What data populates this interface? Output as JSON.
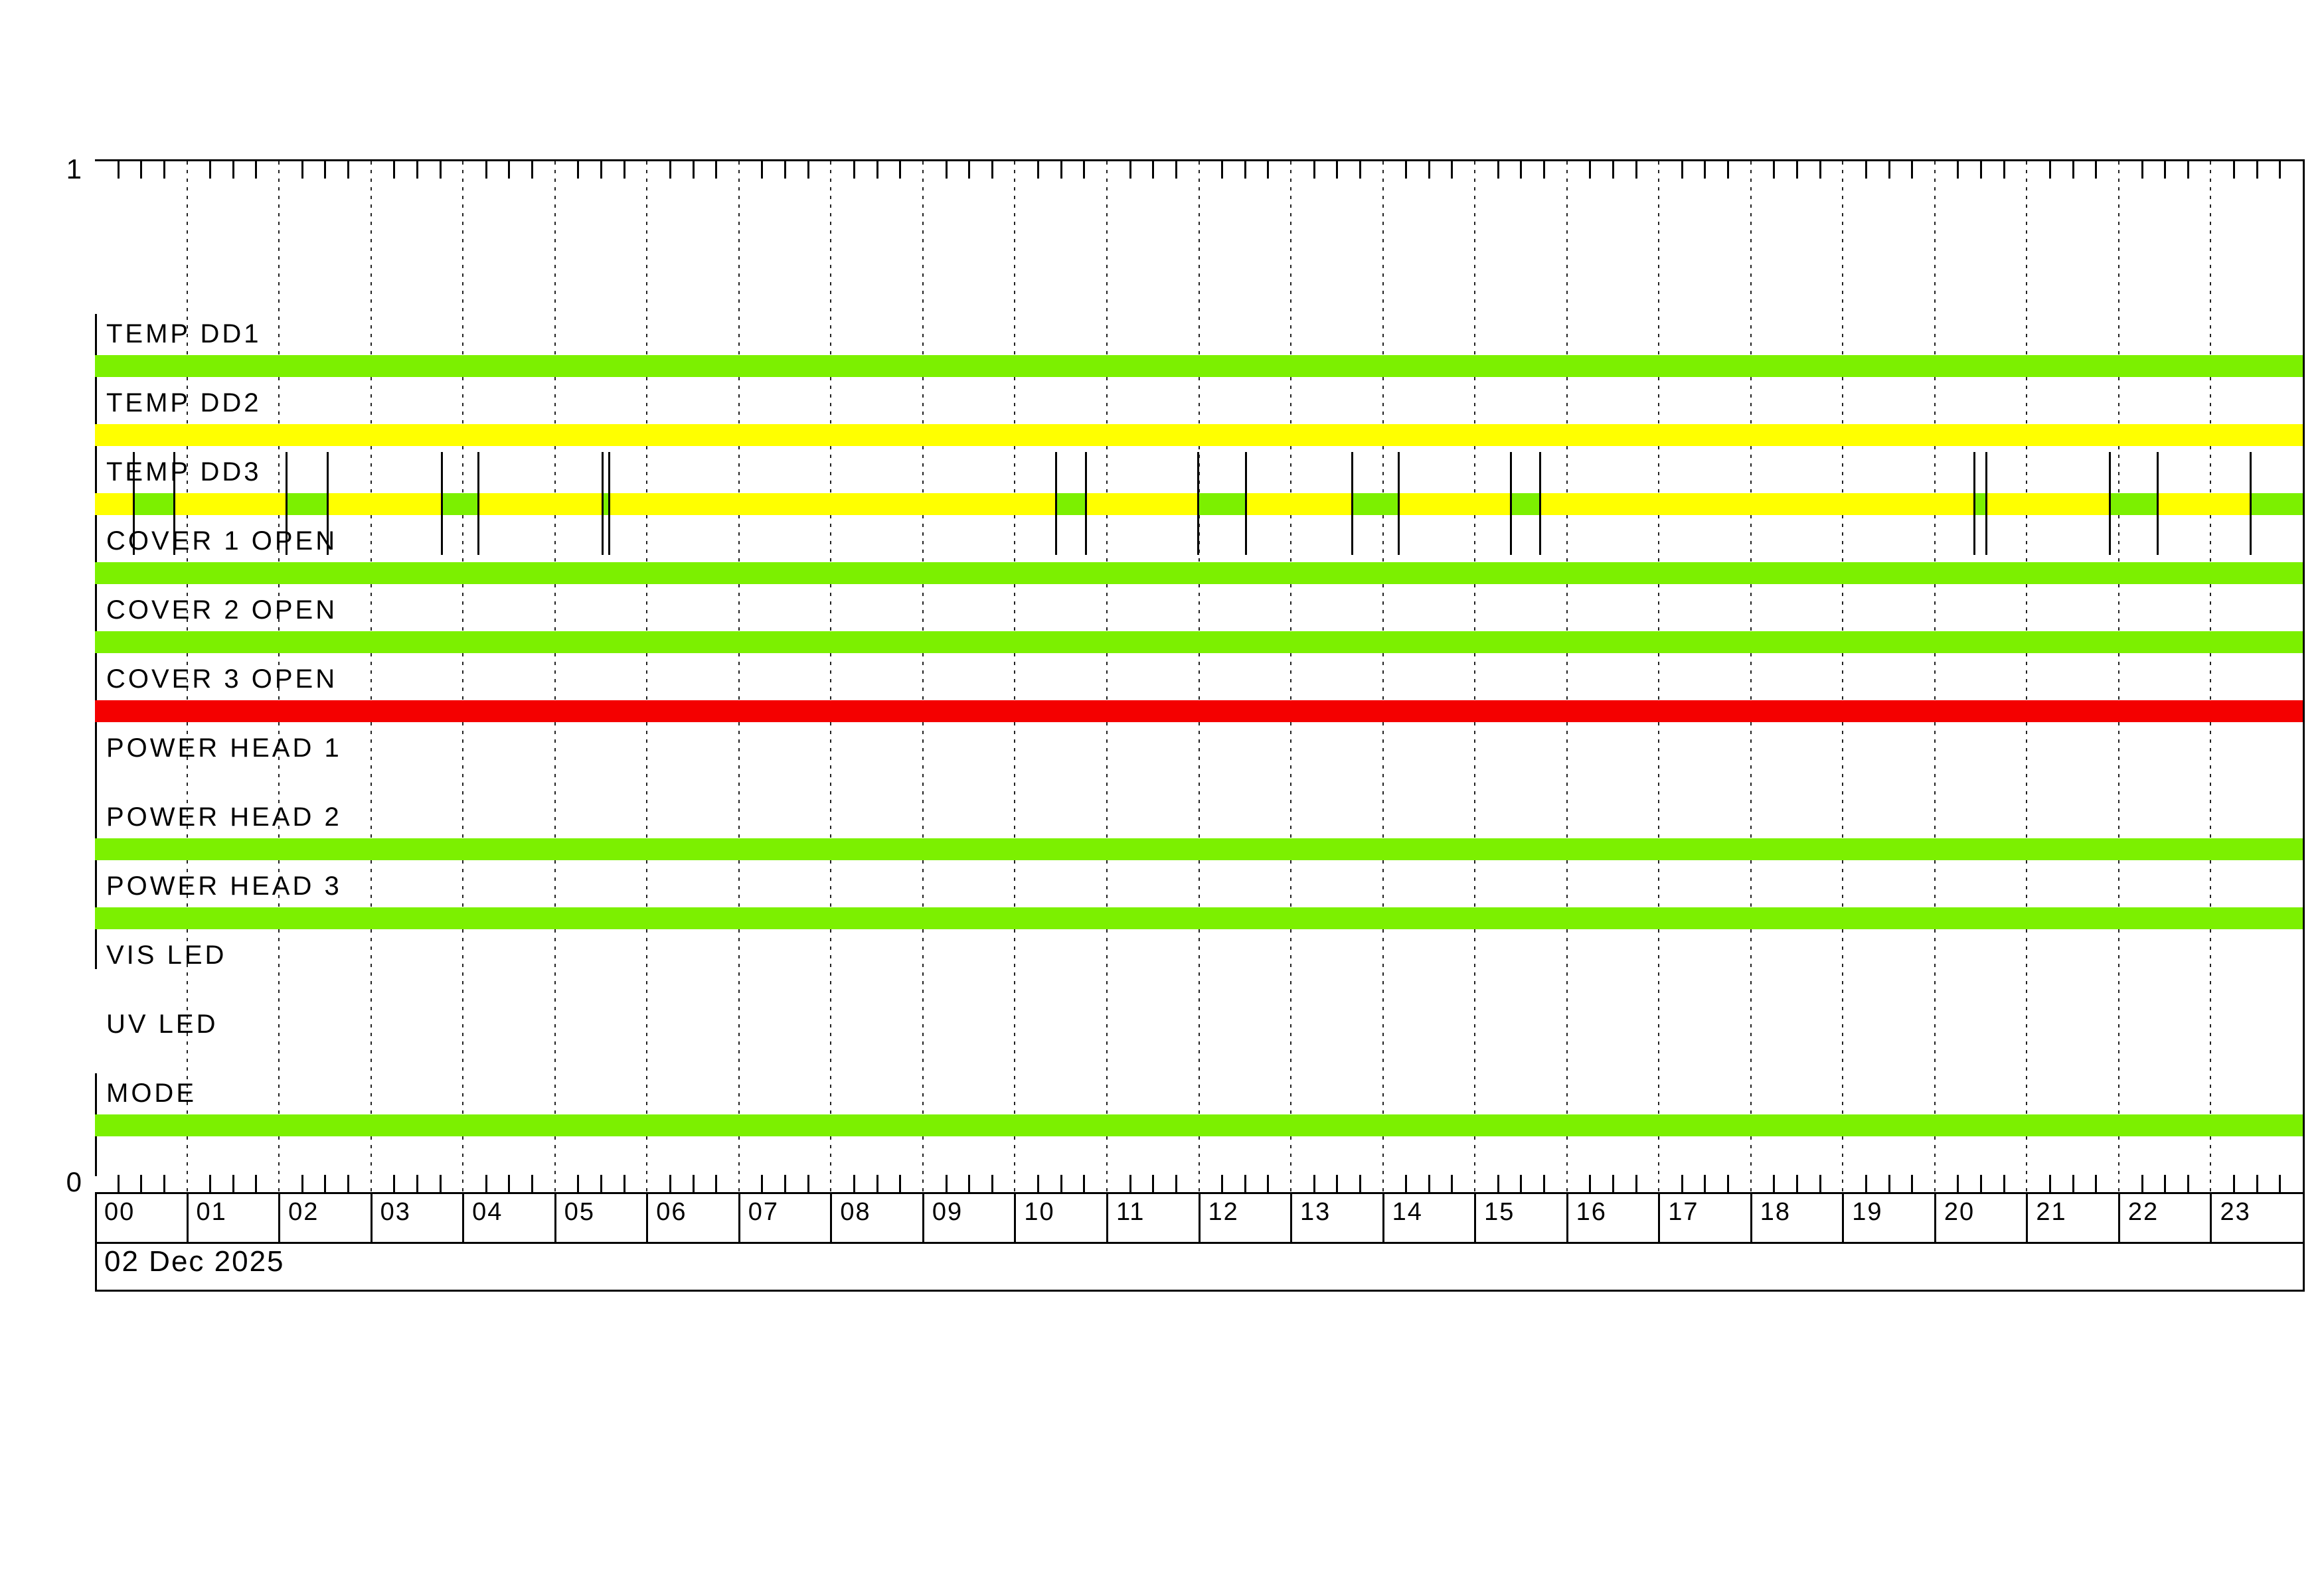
{
  "chart_data": {
    "type": "timeline-status",
    "date_label": "02 Dec 2025",
    "y_axis": {
      "top_label": "1",
      "bottom_label": "0"
    },
    "x_axis": {
      "hour_labels": [
        "00",
        "01",
        "02",
        "03",
        "04",
        "05",
        "06",
        "07",
        "08",
        "09",
        "10",
        "11",
        "12",
        "13",
        "14",
        "15",
        "16",
        "17",
        "18",
        "19",
        "20",
        "21",
        "22",
        "23"
      ],
      "hours_total": 24,
      "minor_tick_minutes": 15,
      "grid": "dotted-hourly"
    },
    "colors": {
      "ok": "#7CF000",
      "warn": "#FFFF00",
      "alarm": "#F40000",
      "axis": "#000000",
      "background": "#FFFFFF"
    },
    "legend_position": "none",
    "rows": [
      {
        "label": "TEMP DD1",
        "state": "ok",
        "axis_mark": true,
        "overlay_segments": []
      },
      {
        "label": "TEMP DD2",
        "state": "warn",
        "axis_mark": true,
        "overlay_segments": []
      },
      {
        "label": "TEMP DD3",
        "state": "warn",
        "axis_mark": true,
        "overlay_state": "ok",
        "overlay_segments": [
          [
            0.42,
            0.86
          ],
          [
            2.08,
            2.53
          ],
          [
            3.77,
            4.17
          ],
          [
            5.52,
            5.59
          ],
          [
            10.45,
            10.77
          ],
          [
            11.99,
            12.51
          ],
          [
            13.67,
            14.17
          ],
          [
            15.39,
            15.71
          ],
          [
            20.43,
            20.56
          ],
          [
            21.9,
            22.42
          ],
          [
            23.43,
            24.0
          ]
        ]
      },
      {
        "label": "COVER 1 OPEN",
        "state": "ok",
        "axis_mark": true,
        "overlay_segments": []
      },
      {
        "label": "COVER 2 OPEN",
        "state": "ok",
        "axis_mark": true,
        "overlay_segments": []
      },
      {
        "label": "COVER 3 OPEN",
        "state": "alarm",
        "axis_mark": true,
        "overlay_segments": []
      },
      {
        "label": "POWER HEAD 1",
        "state": "none",
        "axis_mark": true,
        "overlay_segments": []
      },
      {
        "label": "POWER HEAD 2",
        "state": "ok",
        "axis_mark": true,
        "overlay_segments": []
      },
      {
        "label": "POWER HEAD 3",
        "state": "ok",
        "axis_mark": true,
        "overlay_segments": []
      },
      {
        "label": "VIS LED",
        "state": "none",
        "axis_mark": false,
        "overlay_segments": []
      },
      {
        "label": "UV LED",
        "state": "none",
        "axis_mark": false,
        "overlay_segments": []
      },
      {
        "label": "MODE",
        "state": "ok",
        "axis_mark": true,
        "overlay_segments": []
      }
    ]
  }
}
